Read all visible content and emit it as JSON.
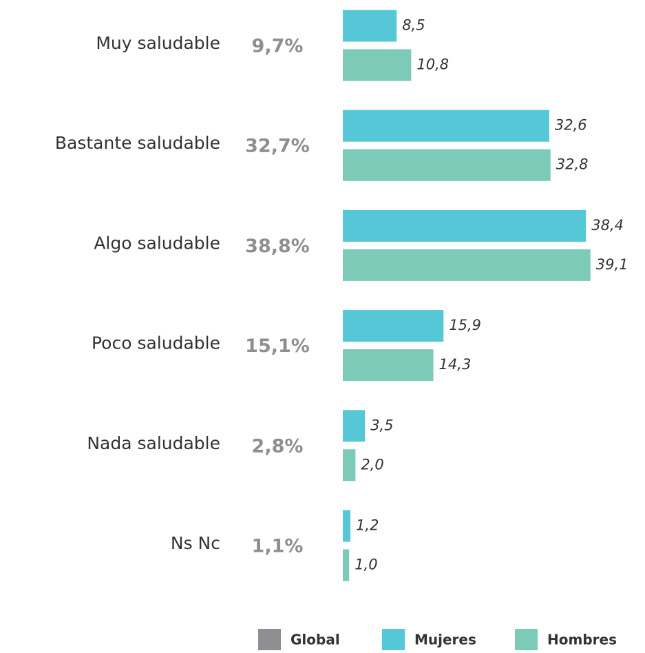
{
  "chart_data": {
    "type": "bar",
    "categories": [
      "Muy saludable",
      "Bastante saludable",
      "Algo saludable",
      "Poco saludable",
      "Nada saludable",
      "Ns Nc"
    ],
    "global": {
      "name": "Global",
      "color": "#8e8e93",
      "values": [
        9.7,
        32.7,
        38.8,
        15.1,
        2.8,
        1.1
      ],
      "value_labels": [
        "9,7%",
        "32,7%",
        "38,8%",
        "15,1%",
        "2,8%",
        "1,1%"
      ]
    },
    "series": [
      {
        "name": "Mujeres",
        "color": "#56c7d6",
        "values": [
          8.5,
          32.6,
          38.4,
          15.9,
          3.5,
          1.2
        ],
        "value_labels": [
          "8,5",
          "32,6",
          "38,4",
          "15,9",
          "3,5",
          "1,2"
        ]
      },
      {
        "name": "Hombres",
        "color": "#7ccab8",
        "values": [
          10.8,
          32.8,
          39.1,
          14.3,
          2.0,
          1.0
        ],
        "value_labels": [
          "10,8",
          "32,8",
          "39,1",
          "14,3",
          "2,0",
          "1,0"
        ]
      }
    ]
  }
}
